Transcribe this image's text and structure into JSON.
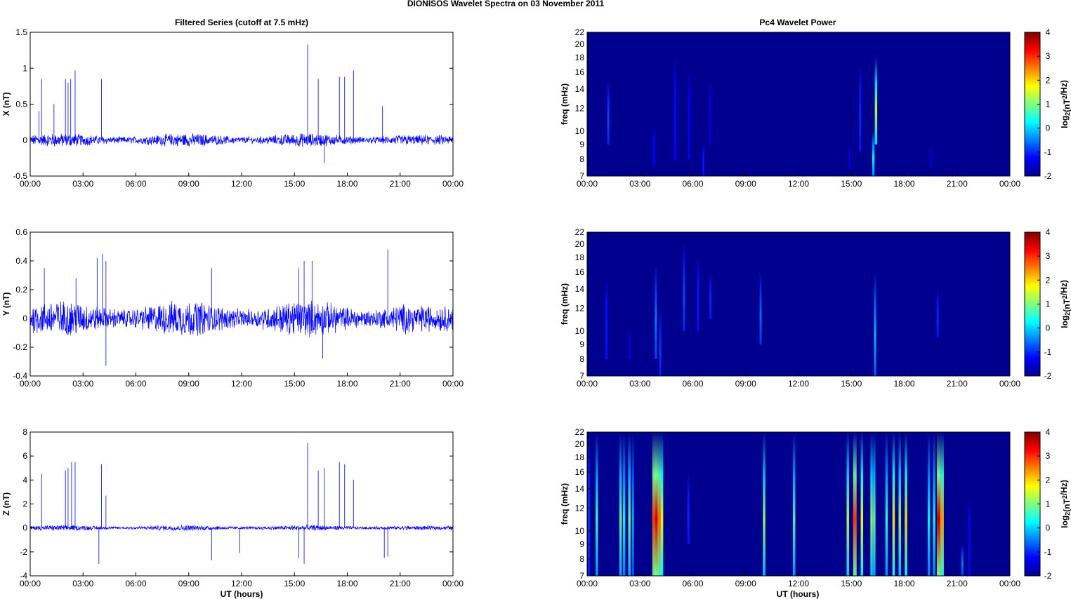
{
  "figure_title": "DIONISOS Wavelet Spectra on 03 November  2011",
  "left_title": "Filtered Series (cutoff at 7.5 mHz)",
  "right_title": "Pc4 Wavelet Power",
  "xlabel": "UT (hours)",
  "colors": {
    "series": "#0000ff",
    "background": "#00008f"
  },
  "chart_data": [
    {
      "type": "line",
      "id": "x",
      "ylabel": "X (nT)",
      "x_ticks": [
        "00:00",
        "03:00",
        "06:00",
        "09:00",
        "12:00",
        "15:00",
        "18:00",
        "21:00",
        "00:00"
      ],
      "ylim": [
        -0.5,
        1.5
      ],
      "y_ticks": [
        "-0.5",
        "0",
        "0.5",
        "1",
        "1.5"
      ],
      "noise_amplitude": 0.06,
      "spikes": [
        {
          "t": 0.5,
          "v": 0.4
        },
        {
          "t": 0.65,
          "v": 0.85
        },
        {
          "t": 1.35,
          "v": 0.5
        },
        {
          "t": 2.0,
          "v": 0.85
        },
        {
          "t": 2.15,
          "v": 0.8
        },
        {
          "t": 2.3,
          "v": 0.85
        },
        {
          "t": 2.55,
          "v": 0.97
        },
        {
          "t": 4.05,
          "v": 0.85
        },
        {
          "t": 15.75,
          "v": 1.33
        },
        {
          "t": 16.35,
          "v": 0.85
        },
        {
          "t": 16.7,
          "v": -0.32
        },
        {
          "t": 17.55,
          "v": 0.88
        },
        {
          "t": 17.85,
          "v": 0.88
        },
        {
          "t": 18.35,
          "v": 0.97
        },
        {
          "t": 20.0,
          "v": 0.47
        }
      ]
    },
    {
      "type": "line",
      "id": "y",
      "ylabel": "Y (nT)",
      "x_ticks": [
        "00:00",
        "03:00",
        "06:00",
        "09:00",
        "12:00",
        "15:00",
        "18:00",
        "21:00",
        "00:00"
      ],
      "ylim": [
        -0.4,
        0.6
      ],
      "y_ticks": [
        "-0.4",
        "-0.2",
        "0",
        "0.2",
        "0.4",
        "0.6"
      ],
      "noise_amplitude": 0.08,
      "spikes": [
        {
          "t": 0.8,
          "v": 0.35
        },
        {
          "t": 2.6,
          "v": 0.28
        },
        {
          "t": 3.8,
          "v": 0.42
        },
        {
          "t": 4.1,
          "v": 0.45
        },
        {
          "t": 4.3,
          "v": 0.4
        },
        {
          "t": 4.3,
          "v": -0.33
        },
        {
          "t": 10.3,
          "v": 0.35
        },
        {
          "t": 15.25,
          "v": 0.35
        },
        {
          "t": 15.55,
          "v": 0.4
        },
        {
          "t": 16.0,
          "v": 0.4
        },
        {
          "t": 16.6,
          "v": -0.28
        },
        {
          "t": 20.3,
          "v": 0.48
        }
      ]
    },
    {
      "type": "line",
      "id": "z",
      "ylabel": "Z (nT)",
      "x_ticks": [
        "00:00",
        "03:00",
        "06:00",
        "09:00",
        "12:00",
        "15:00",
        "18:00",
        "21:00",
        "00:00"
      ],
      "ylim": [
        -4,
        8
      ],
      "y_ticks": [
        "-4",
        "-2",
        "0",
        "2",
        "4",
        "6",
        "8"
      ],
      "noise_amplitude": 0.15,
      "spikes": [
        {
          "t": 0.65,
          "v": 4.5
        },
        {
          "t": 2.0,
          "v": 4.8
        },
        {
          "t": 2.15,
          "v": 5.0
        },
        {
          "t": 2.35,
          "v": 5.5
        },
        {
          "t": 2.55,
          "v": 5.5
        },
        {
          "t": 3.9,
          "v": -3.0
        },
        {
          "t": 4.05,
          "v": 5.3
        },
        {
          "t": 4.3,
          "v": 2.7
        },
        {
          "t": 10.3,
          "v": -2.7
        },
        {
          "t": 11.9,
          "v": -2.1
        },
        {
          "t": 15.25,
          "v": -2.5
        },
        {
          "t": 15.55,
          "v": -3.0
        },
        {
          "t": 15.75,
          "v": 7.1
        },
        {
          "t": 16.35,
          "v": 4.8
        },
        {
          "t": 16.7,
          "v": 5.0
        },
        {
          "t": 17.55,
          "v": 5.5
        },
        {
          "t": 17.85,
          "v": 5.3
        },
        {
          "t": 18.35,
          "v": 4.0
        },
        {
          "t": 20.1,
          "v": -2.5
        },
        {
          "t": 20.3,
          "v": -2.4
        }
      ]
    },
    {
      "type": "heatmap",
      "id": "px",
      "ylabel": "freq (mHz)",
      "x_ticks": [
        "00:00",
        "03:00",
        "06:00",
        "09:00",
        "12:00",
        "15:00",
        "18:00",
        "21:00",
        "00:00"
      ],
      "y_ticks": [
        "7",
        "8",
        "9",
        "10",
        "12",
        "14",
        "16",
        "18",
        "20",
        "22"
      ],
      "colorbar_ticks": [
        "-2",
        "-1",
        "0",
        "1",
        "2",
        "3",
        "4"
      ],
      "colorbar_label": "log2(nT2/Hz)",
      "clim": [
        -2,
        4
      ],
      "streaks": [
        {
          "t": 1.2,
          "f0": 9,
          "f1": 15,
          "v": -0.8
        },
        {
          "t": 3.8,
          "f0": 7.5,
          "f1": 10.5,
          "v": -1.3
        },
        {
          "t": 5.0,
          "f0": 8,
          "f1": 18,
          "v": -1.2
        },
        {
          "t": 5.8,
          "f0": 8,
          "f1": 16,
          "v": -1.3
        },
        {
          "t": 6.6,
          "f0": 7,
          "f1": 9,
          "v": -1.1
        },
        {
          "t": 7.0,
          "f0": 9,
          "f1": 15,
          "v": -1.5
        },
        {
          "t": 14.9,
          "f0": 7.5,
          "f1": 9,
          "v": -1.5
        },
        {
          "t": 15.5,
          "f0": 8.5,
          "f1": 17,
          "v": -1.0
        },
        {
          "t": 16.25,
          "f0": 7,
          "f1": 10,
          "v": 0.3
        },
        {
          "t": 16.4,
          "f0": 9,
          "f1": 18,
          "v": 1.4
        },
        {
          "t": 19.5,
          "f0": 7.5,
          "f1": 9,
          "v": -1.7
        }
      ]
    },
    {
      "type": "heatmap",
      "id": "py",
      "ylabel": "freq (mHz)",
      "x_ticks": [
        "00:00",
        "03:00",
        "06:00",
        "09:00",
        "12:00",
        "15:00",
        "18:00",
        "21:00",
        "00:00"
      ],
      "y_ticks": [
        "7",
        "8",
        "9",
        "10",
        "12",
        "14",
        "16",
        "18",
        "20",
        "22"
      ],
      "colorbar_ticks": [
        "-2",
        "-1",
        "0",
        "1",
        "2",
        "3",
        "4"
      ],
      "colorbar_label": "log2(nT2/Hz)",
      "clim": [
        -2,
        4
      ],
      "streaks": [
        {
          "t": 1.1,
          "f0": 8,
          "f1": 15,
          "v": -1.1
        },
        {
          "t": 2.4,
          "f0": 8,
          "f1": 10,
          "v": -1.5
        },
        {
          "t": 3.9,
          "f0": 8,
          "f1": 17,
          "v": -0.5
        },
        {
          "t": 4.15,
          "f0": 7,
          "f1": 12,
          "v": -0.9
        },
        {
          "t": 5.5,
          "f0": 10,
          "f1": 20,
          "v": -0.8
        },
        {
          "t": 6.3,
          "f0": 10,
          "f1": 18,
          "v": -1.1
        },
        {
          "t": 7.0,
          "f0": 11,
          "f1": 16,
          "v": -1.0
        },
        {
          "t": 9.85,
          "f0": 9,
          "f1": 16,
          "v": -0.6
        },
        {
          "t": 16.35,
          "f0": 7,
          "f1": 16,
          "v": -0.1
        },
        {
          "t": 19.9,
          "f0": 9.5,
          "f1": 14,
          "v": -1.0
        }
      ]
    },
    {
      "type": "heatmap",
      "id": "pz",
      "ylabel": "freq (mHz)",
      "x_ticks": [
        "00:00",
        "03:00",
        "06:00",
        "09:00",
        "12:00",
        "15:00",
        "18:00",
        "21:00",
        "00:00"
      ],
      "y_ticks": [
        "7",
        "8",
        "9",
        "10",
        "12",
        "14",
        "16",
        "18",
        "20",
        "22"
      ],
      "colorbar_ticks": [
        "-2",
        "-1",
        "0",
        "1",
        "2",
        "3",
        "4"
      ],
      "colorbar_label": "log2(nT2/Hz)",
      "clim": [
        -2,
        4
      ],
      "streaks": [
        {
          "t": 0.1,
          "f0": 7,
          "f1": 22,
          "v": -0.9
        },
        {
          "t": 0.55,
          "f0": 7,
          "f1": 22,
          "v": 0.6
        },
        {
          "t": 1.9,
          "f0": 7,
          "f1": 22,
          "v": 0.8
        },
        {
          "t": 2.1,
          "f0": 7,
          "f1": 22,
          "v": 0.3
        },
        {
          "t": 2.4,
          "f0": 7,
          "f1": 22,
          "v": 0.9
        },
        {
          "t": 2.6,
          "f0": 7,
          "f1": 22,
          "v": -0.2
        },
        {
          "t": 3.8,
          "f0": 7,
          "f1": 22,
          "v": 2.9
        },
        {
          "t": 3.95,
          "f0": 7,
          "f1": 22,
          "v": 3.5
        },
        {
          "t": 4.1,
          "f0": 7,
          "f1": 22,
          "v": 2.6
        },
        {
          "t": 4.25,
          "f0": 7,
          "f1": 22,
          "v": 1.7
        },
        {
          "t": 5.75,
          "f0": 9,
          "f1": 16,
          "v": -1.0
        },
        {
          "t": 10.05,
          "f0": 7,
          "f1": 22,
          "v": 1.1
        },
        {
          "t": 11.75,
          "f0": 7,
          "f1": 22,
          "v": 0.6
        },
        {
          "t": 14.8,
          "f0": 7,
          "f1": 22,
          "v": 1.3
        },
        {
          "t": 15.2,
          "f0": 7,
          "f1": 22,
          "v": 2.9
        },
        {
          "t": 15.6,
          "f0": 7,
          "f1": 22,
          "v": 1.7
        },
        {
          "t": 16.15,
          "f0": 7,
          "f1": 22,
          "v": 1.1
        },
        {
          "t": 16.3,
          "f0": 7,
          "f1": 22,
          "v": 0.8
        },
        {
          "t": 17.0,
          "f0": 7,
          "f1": 22,
          "v": 0.5
        },
        {
          "t": 17.4,
          "f0": 7,
          "f1": 22,
          "v": 1.9
        },
        {
          "t": 17.75,
          "f0": 7,
          "f1": 22,
          "v": 1.1
        },
        {
          "t": 18.1,
          "f0": 7,
          "f1": 22,
          "v": 1.9
        },
        {
          "t": 19.4,
          "f0": 7,
          "f1": 22,
          "v": 0.3
        },
        {
          "t": 19.7,
          "f0": 7,
          "f1": 22,
          "v": 0.3
        },
        {
          "t": 19.95,
          "f0": 7,
          "f1": 22,
          "v": 3.5
        },
        {
          "t": 20.15,
          "f0": 7,
          "f1": 22,
          "v": 2.3
        },
        {
          "t": 21.3,
          "f0": 7,
          "f1": 9,
          "v": -0.5
        },
        {
          "t": 21.7,
          "f0": 7,
          "f1": 13,
          "v": -1.2
        }
      ]
    }
  ]
}
